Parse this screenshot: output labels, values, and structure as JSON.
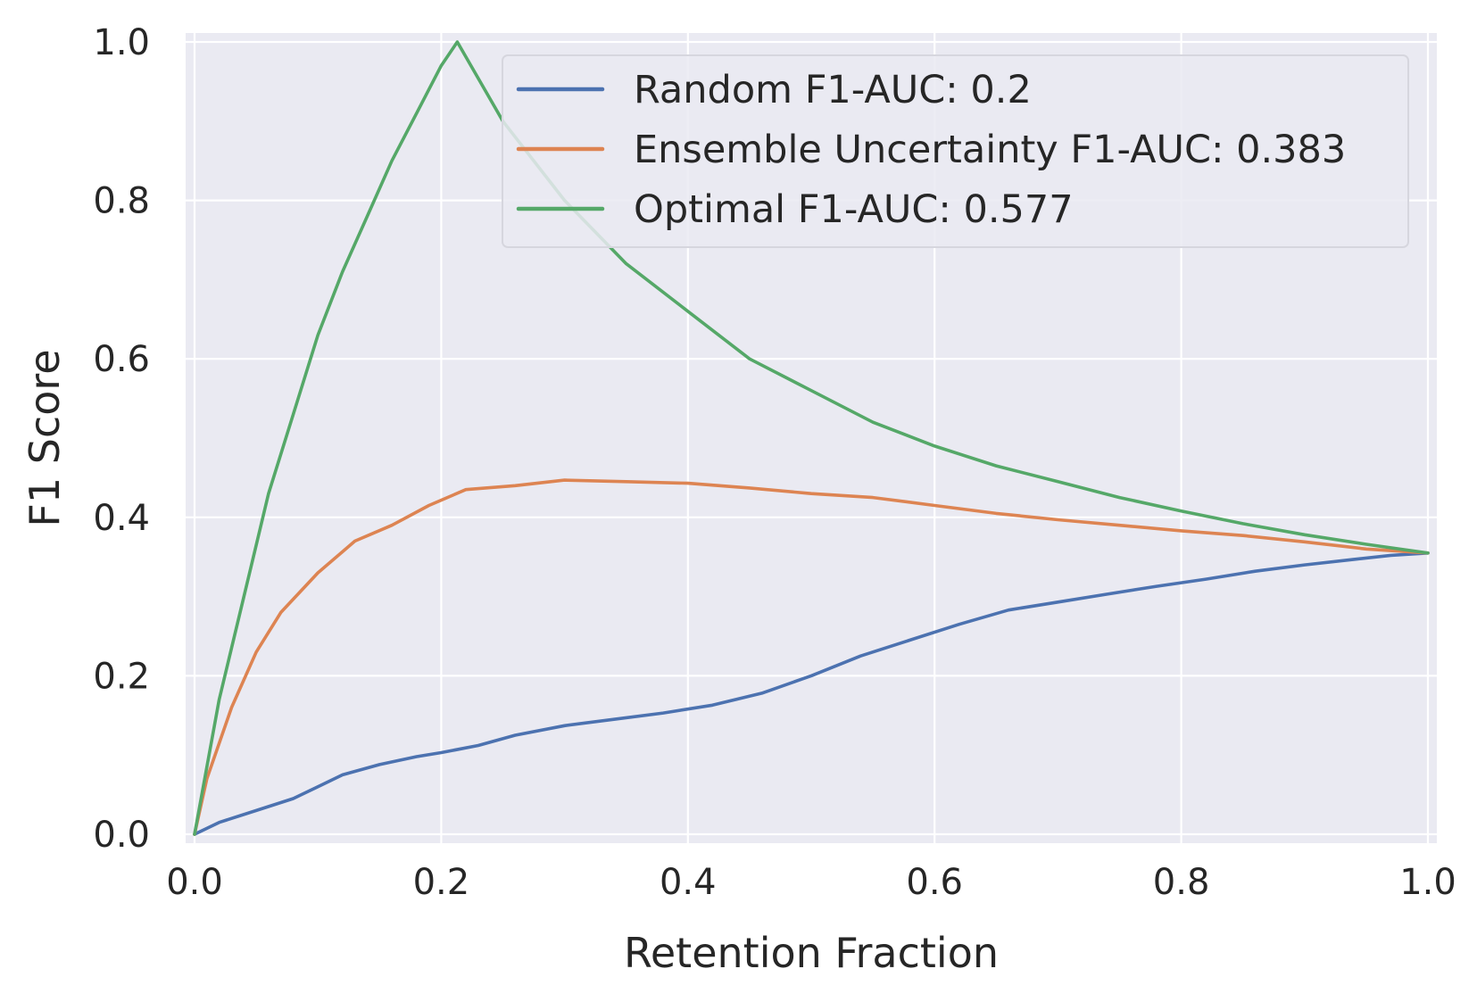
{
  "chart_data": {
    "type": "line",
    "title": "",
    "xlabel": "Retention Fraction",
    "ylabel": "F1 Score",
    "xlim": [
      0.0,
      1.0
    ],
    "ylim": [
      0.0,
      1.0
    ],
    "xticks": [
      "0.0",
      "0.2",
      "0.4",
      "0.6",
      "0.8",
      "1.0"
    ],
    "yticks": [
      "0.0",
      "0.2",
      "0.4",
      "0.6",
      "0.8",
      "1.0"
    ],
    "grid": true,
    "legend_position": "top-right",
    "colors": {
      "background": "#eaeaf2",
      "grid": "#ffffff",
      "text": "#262626"
    },
    "series": [
      {
        "name": "Random F1-AUC: 0.2",
        "color": "#4c72b0",
        "x": [
          0.0,
          0.02,
          0.05,
          0.08,
          0.1,
          0.12,
          0.15,
          0.18,
          0.2,
          0.23,
          0.26,
          0.3,
          0.34,
          0.38,
          0.42,
          0.46,
          0.5,
          0.54,
          0.58,
          0.62,
          0.66,
          0.7,
          0.74,
          0.78,
          0.82,
          0.86,
          0.9,
          0.94,
          0.97,
          1.0
        ],
        "y": [
          0.0,
          0.015,
          0.03,
          0.045,
          0.06,
          0.075,
          0.088,
          0.098,
          0.103,
          0.112,
          0.125,
          0.137,
          0.145,
          0.153,
          0.163,
          0.178,
          0.2,
          0.225,
          0.245,
          0.265,
          0.283,
          0.293,
          0.303,
          0.313,
          0.322,
          0.332,
          0.34,
          0.347,
          0.352,
          0.355
        ]
      },
      {
        "name": "Ensemble Uncertainty F1-AUC: 0.383",
        "color": "#dd8452",
        "x": [
          0.0,
          0.01,
          0.03,
          0.05,
          0.07,
          0.1,
          0.13,
          0.16,
          0.19,
          0.22,
          0.26,
          0.3,
          0.35,
          0.4,
          0.45,
          0.5,
          0.55,
          0.6,
          0.65,
          0.7,
          0.75,
          0.8,
          0.85,
          0.9,
          0.95,
          1.0
        ],
        "y": [
          0.0,
          0.07,
          0.16,
          0.23,
          0.28,
          0.33,
          0.37,
          0.39,
          0.415,
          0.435,
          0.44,
          0.447,
          0.445,
          0.443,
          0.437,
          0.43,
          0.425,
          0.415,
          0.405,
          0.397,
          0.39,
          0.383,
          0.377,
          0.369,
          0.36,
          0.355
        ]
      },
      {
        "name": "Optimal F1-AUC: 0.577",
        "color": "#55a868",
        "x": [
          0.0,
          0.02,
          0.04,
          0.06,
          0.08,
          0.1,
          0.12,
          0.14,
          0.16,
          0.18,
          0.2,
          0.213,
          0.25,
          0.3,
          0.35,
          0.4,
          0.45,
          0.5,
          0.55,
          0.6,
          0.65,
          0.7,
          0.75,
          0.8,
          0.85,
          0.9,
          0.95,
          1.0
        ],
        "y": [
          0.0,
          0.17,
          0.3,
          0.43,
          0.53,
          0.63,
          0.71,
          0.78,
          0.85,
          0.91,
          0.97,
          1.0,
          0.9,
          0.8,
          0.72,
          0.66,
          0.6,
          0.56,
          0.52,
          0.49,
          0.465,
          0.445,
          0.425,
          0.408,
          0.392,
          0.378,
          0.366,
          0.355
        ]
      }
    ]
  }
}
